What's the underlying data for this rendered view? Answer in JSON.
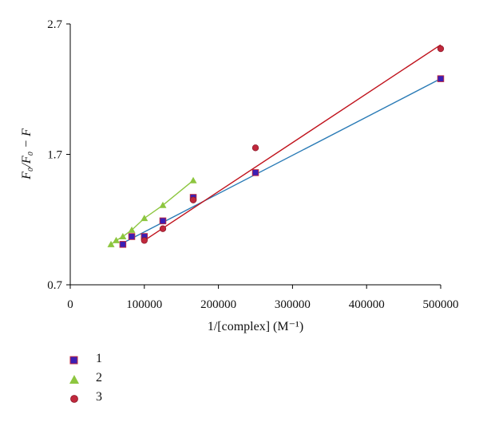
{
  "chart_data": {
    "type": "scatter",
    "xlabel": "1/[complex] (M⁻¹)",
    "ylabel": "F₀/F₀ − F",
    "xlim": [
      0,
      500000
    ],
    "ylim": [
      0.7,
      2.7
    ],
    "xticks": [
      "0",
      "100000",
      "200000",
      "300000",
      "400000",
      "500000"
    ],
    "yticks": [
      "0.7",
      "1.7",
      "2.7"
    ],
    "grid": false,
    "legend_position": "bottom-left",
    "series": [
      {
        "name": "1",
        "marker": "square",
        "color": "#3b1fb5",
        "line_color": "#2a7bb6",
        "x": [
          71000,
          83000,
          100000,
          125000,
          166000,
          250000,
          500000
        ],
        "y": [
          1.01,
          1.07,
          1.07,
          1.19,
          1.37,
          1.56,
          2.28
        ],
        "fit": [
          [
            71000,
            1.02
          ],
          [
            500000,
            2.28
          ]
        ]
      },
      {
        "name": "2",
        "marker": "triangle",
        "color": "#8dc63f",
        "line_color": "#8dc63f",
        "x": [
          55000,
          62000,
          71000,
          83000,
          100000,
          125000,
          166000
        ],
        "y": [
          1.01,
          1.04,
          1.07,
          1.12,
          1.21,
          1.31,
          1.5
        ],
        "fit": [
          [
            55000,
            1.01
          ],
          [
            62000,
            1.04
          ],
          [
            71000,
            1.07
          ],
          [
            83000,
            1.12
          ],
          [
            100000,
            1.21
          ],
          [
            125000,
            1.31
          ],
          [
            166000,
            1.5
          ]
        ]
      },
      {
        "name": "3",
        "marker": "circle",
        "color": "#c0283c",
        "line_color": "#c0121c",
        "x": [
          100000,
          125000,
          166000,
          250000,
          500000
        ],
        "y": [
          1.04,
          1.13,
          1.35,
          1.75,
          2.51
        ],
        "fit": [
          [
            100000,
            1.04
          ],
          [
            500000,
            2.54
          ]
        ]
      }
    ]
  }
}
